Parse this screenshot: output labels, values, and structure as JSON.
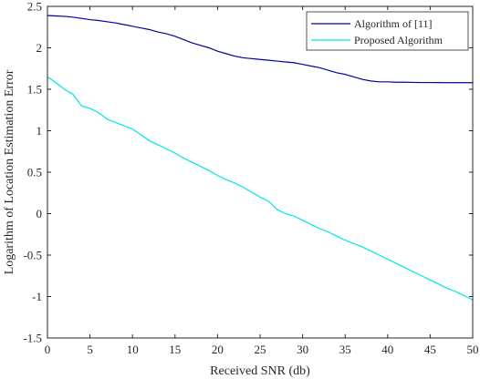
{
  "chart_data": {
    "type": "line",
    "title": "",
    "xlabel": "Received SNR (db)",
    "ylabel": "Logarithm of Location Estimation Error",
    "xlim": [
      0,
      50
    ],
    "ylim": [
      -1.5,
      2.5
    ],
    "xticks": [
      "0",
      "5",
      "10",
      "15",
      "20",
      "25",
      "30",
      "35",
      "40",
      "45",
      "50"
    ],
    "yticks": [
      "-1.5",
      "-1",
      "-0.5",
      "0",
      "0.5",
      "1",
      "1.5",
      "2",
      "2.5"
    ],
    "grid": false,
    "legend_position": "top-right",
    "x": [
      0,
      1,
      2,
      3,
      4,
      5,
      6,
      7,
      8,
      9,
      10,
      11,
      12,
      13,
      14,
      15,
      16,
      17,
      18,
      19,
      20,
      21,
      22,
      23,
      24,
      25,
      26,
      27,
      28,
      29,
      30,
      31,
      32,
      33,
      34,
      35,
      36,
      37,
      38,
      39,
      40,
      41,
      42,
      43,
      44,
      45,
      46,
      47,
      48,
      49,
      50
    ],
    "series": [
      {
        "name": "Algorithm of [11]",
        "color": "#0000a8",
        "values": [
          2.39,
          2.385,
          2.38,
          2.37,
          2.355,
          2.34,
          2.33,
          2.315,
          2.3,
          2.28,
          2.26,
          2.24,
          2.22,
          2.19,
          2.17,
          2.14,
          2.1,
          2.06,
          2.03,
          2.0,
          1.96,
          1.93,
          1.9,
          1.88,
          1.87,
          1.86,
          1.85,
          1.84,
          1.83,
          1.82,
          1.8,
          1.78,
          1.76,
          1.73,
          1.7,
          1.68,
          1.65,
          1.62,
          1.6,
          1.59,
          1.59,
          1.585,
          1.585,
          1.583,
          1.582,
          1.582,
          1.581,
          1.58,
          1.58,
          1.58,
          1.58
        ]
      },
      {
        "name": "Proposed Algorithm",
        "color": "#00e5e5",
        "values": [
          1.65,
          1.58,
          1.5,
          1.44,
          1.3,
          1.27,
          1.22,
          1.14,
          1.1,
          1.06,
          1.02,
          0.95,
          0.88,
          0.83,
          0.78,
          0.73,
          0.67,
          0.62,
          0.57,
          0.52,
          0.46,
          0.41,
          0.37,
          0.32,
          0.26,
          0.2,
          0.15,
          0.05,
          0.0,
          -0.03,
          -0.08,
          -0.13,
          -0.18,
          -0.22,
          -0.27,
          -0.32,
          -0.36,
          -0.4,
          -0.45,
          -0.5,
          -0.55,
          -0.6,
          -0.65,
          -0.7,
          -0.75,
          -0.8,
          -0.85,
          -0.9,
          -0.94,
          -0.99,
          -1.04
        ]
      }
    ]
  }
}
